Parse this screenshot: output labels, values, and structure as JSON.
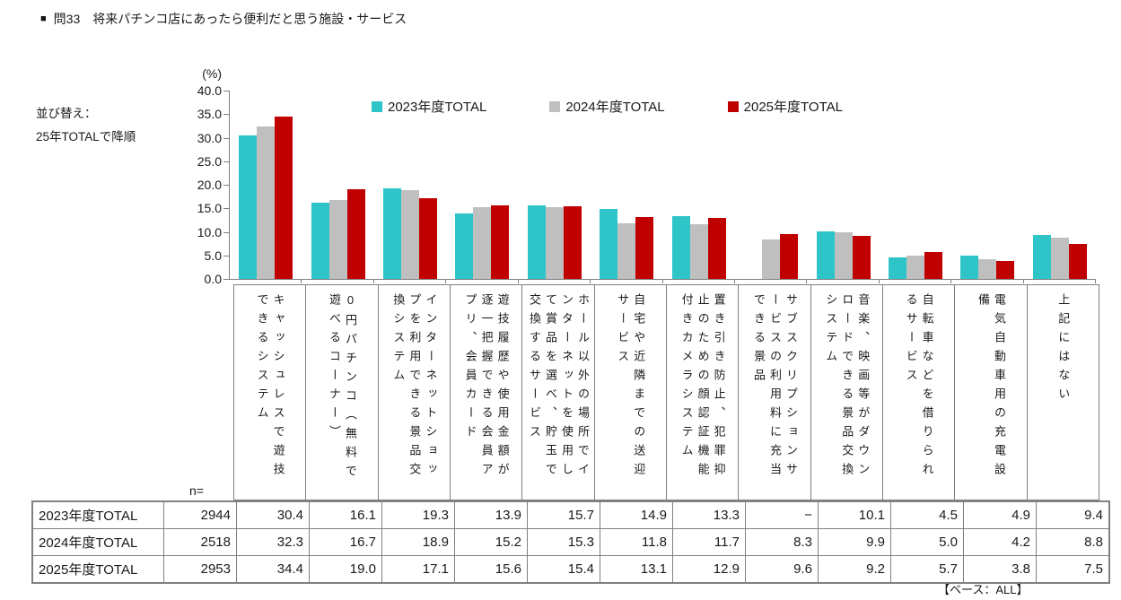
{
  "header": {
    "marker": "■",
    "title": "問33　将来パチンコ店にあったら便利だと思う施設・サービス"
  },
  "sort_note": {
    "line1": "並び替え：",
    "line2": "25年TOTALで降順"
  },
  "table": {
    "n_header": "n=",
    "rows": [
      {
        "label": "2023年度TOTAL",
        "n": "2944",
        "values": [
          "30.4",
          "16.1",
          "19.3",
          "13.9",
          "15.7",
          "14.9",
          "13.3",
          "−",
          "10.1",
          "4.5",
          "4.9",
          "9.4"
        ]
      },
      {
        "label": "2024年度TOTAL",
        "n": "2518",
        "values": [
          "32.3",
          "16.7",
          "18.9",
          "15.2",
          "15.3",
          "11.8",
          "11.7",
          "8.3",
          "9.9",
          "5.0",
          "4.2",
          "8.8"
        ]
      },
      {
        "label": "2025年度TOTAL",
        "n": "2953",
        "values": [
          "34.4",
          "19.0",
          "17.1",
          "15.6",
          "15.4",
          "13.1",
          "12.9",
          "9.6",
          "9.2",
          "5.7",
          "3.8",
          "7.5"
        ]
      }
    ]
  },
  "footer": {
    "base_note": "【ベース：ALL】"
  },
  "chart_data": {
    "type": "bar",
    "title": "問33　将来パチンコ店にあったら便利だと思う施設・サービス",
    "y_unit": "(%)",
    "ylabel": "",
    "xlabel": "",
    "ylim": [
      0,
      40
    ],
    "ytick_step": 5,
    "yticks": [
      "40.0",
      "35.0",
      "30.0",
      "25.0",
      "20.0",
      "15.0",
      "10.0",
      "5.0",
      "0.0"
    ],
    "grid": false,
    "legend_position": "top",
    "categories": [
      "キャッシュレスで遊技できるシステム",
      "0円パチンコ（無料で遊べるコーナー）",
      "インターネットショップを利用できる景品交換システム",
      "遊技履歴や使用金額が逐一把握できる会員アプリ、会員カード",
      "ホール以外の場所でインターネットを使用して賞品を選べ、貯玉で交換するサービス",
      "自宅や近隣までの送迎サービス",
      "置き引き防止、犯罪抑止のための顔認証機能付きカメラシステム",
      "サブスクリプションサービスの利用料に充当できる景品",
      "音楽、映画等がダウンロードできる景品交換システム",
      "自転車などを借りられるサービス",
      "電気自動車用の充電設備",
      "上記にはない"
    ],
    "series": [
      {
        "name": "2023年度TOTAL",
        "color": "#2FC5C8",
        "n": 2944,
        "values": [
          30.4,
          16.1,
          19.3,
          13.9,
          15.7,
          14.9,
          13.3,
          null,
          10.1,
          4.5,
          4.9,
          9.4
        ]
      },
      {
        "name": "2024年度TOTAL",
        "color": "#BFBFBF",
        "n": 2518,
        "values": [
          32.3,
          16.7,
          18.9,
          15.2,
          15.3,
          11.8,
          11.7,
          8.3,
          9.9,
          5.0,
          4.2,
          8.8
        ]
      },
      {
        "name": "2025年度TOTAL",
        "color": "#C00000",
        "n": 2953,
        "values": [
          34.4,
          19.0,
          17.1,
          15.6,
          15.4,
          13.1,
          12.9,
          9.6,
          9.2,
          5.7,
          3.8,
          7.5
        ]
      }
    ]
  }
}
